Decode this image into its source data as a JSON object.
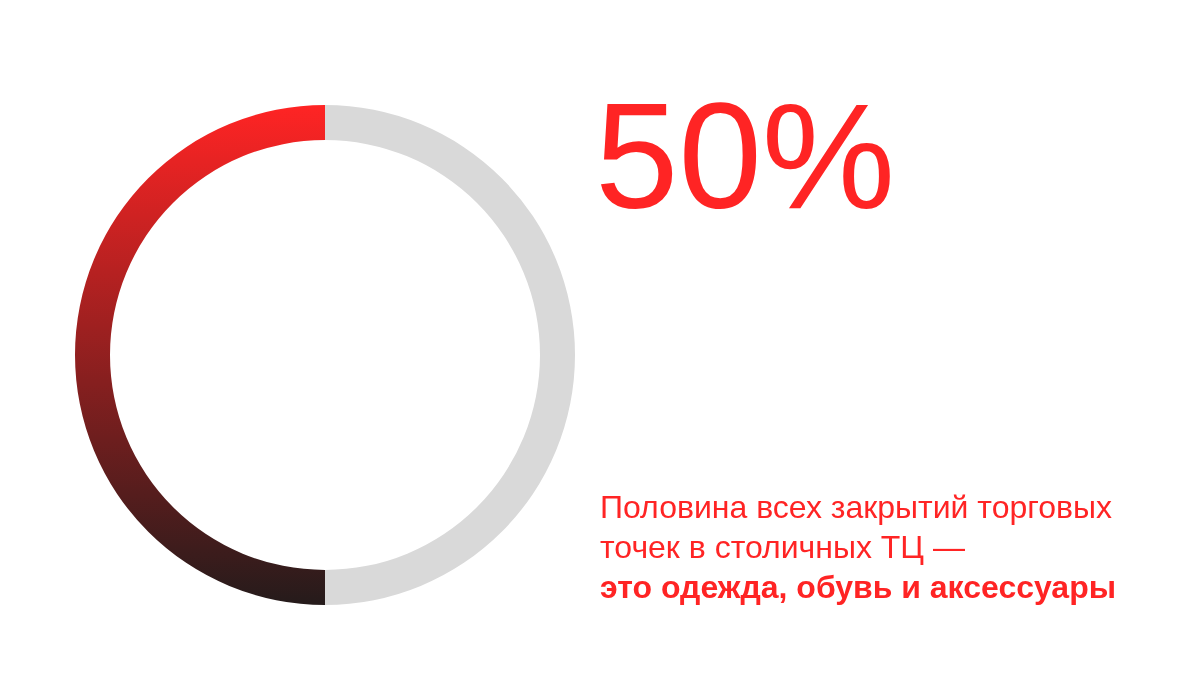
{
  "chart_data": {
    "type": "donut",
    "title": "50%",
    "subtitle": "Половина всех закрытий торговых точек в столичных ТЦ —",
    "annotations": [
      "это одежда, обувь и аксессуары"
    ],
    "categories": [
      null,
      null
    ],
    "values": [
      50,
      50
    ],
    "colors": [
      "#ff2424",
      "#d9d9d9"
    ]
  }
}
